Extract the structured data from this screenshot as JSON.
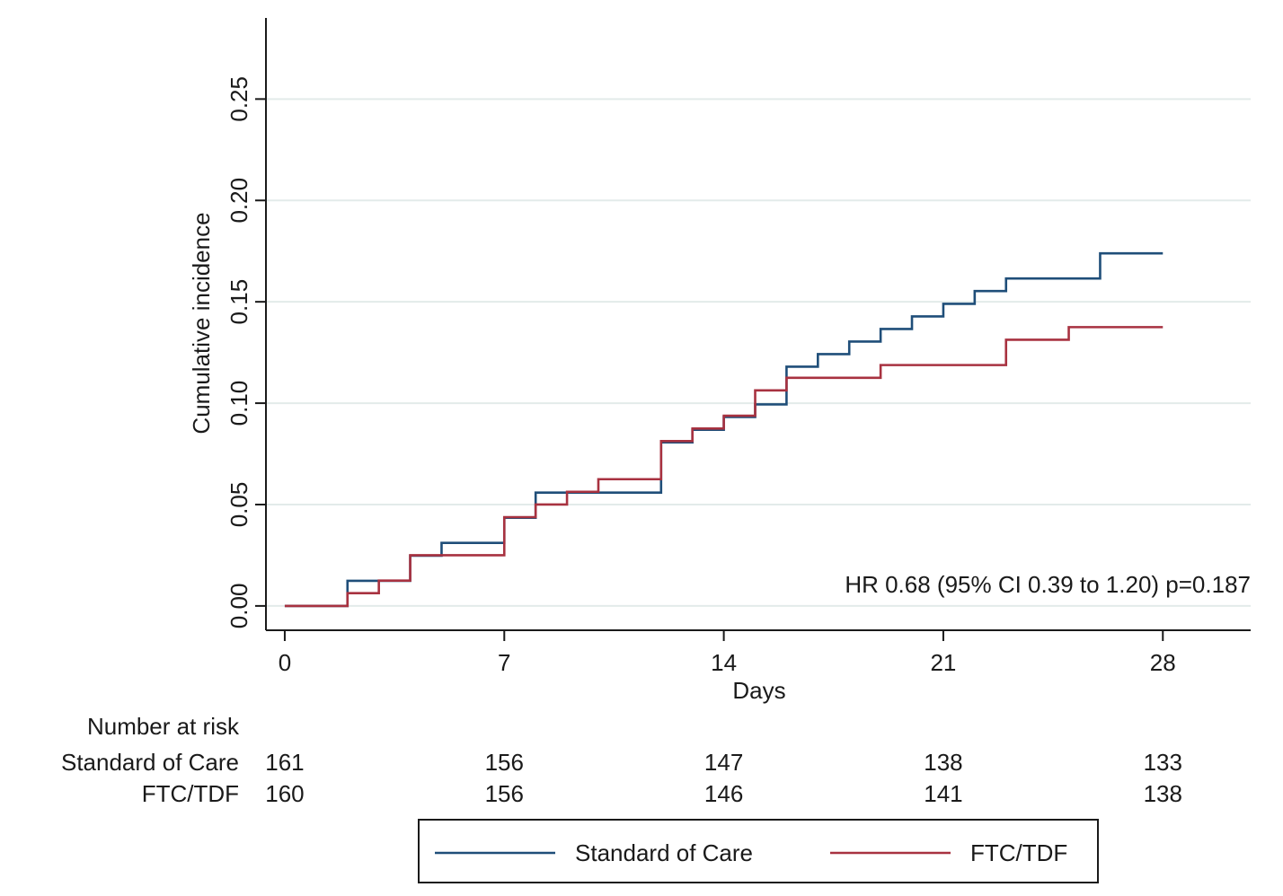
{
  "chart_data": {
    "type": "line",
    "step": true,
    "xlabel": "Days",
    "ylabel": "Cumulative incidence",
    "xlim": [
      -0.6,
      30.8
    ],
    "ylim": [
      -0.012,
      0.29
    ],
    "xticks": [
      0,
      7,
      14,
      21,
      28
    ],
    "xtick_labels": [
      "0",
      "7",
      "14",
      "21",
      "28"
    ],
    "yticks": [
      0,
      0.05,
      0.1,
      0.15,
      0.2,
      0.25
    ],
    "ytick_labels": [
      "0.00",
      "0.05",
      "0.10",
      "0.15",
      "0.20",
      "0.25"
    ],
    "grid": true,
    "annotation": "HR 0.68 (95% CI 0.39 to 1.20) p=0.187",
    "series": [
      {
        "name": "Standard of Care",
        "color": "#1f4e79",
        "points": [
          [
            0,
            0
          ],
          [
            2,
            0.0124
          ],
          [
            4,
            0.0248
          ],
          [
            5,
            0.0311
          ],
          [
            7,
            0.0435
          ],
          [
            8,
            0.0559
          ],
          [
            12,
            0.0807
          ],
          [
            13,
            0.0869
          ],
          [
            14,
            0.0932
          ],
          [
            15,
            0.0994
          ],
          [
            16,
            0.118
          ],
          [
            17,
            0.1242
          ],
          [
            18,
            0.1304
          ],
          [
            19,
            0.1366
          ],
          [
            20,
            0.1428
          ],
          [
            21,
            0.149
          ],
          [
            22,
            0.1553
          ],
          [
            23,
            0.1615
          ],
          [
            26,
            0.1739
          ],
          [
            28,
            0.1739
          ]
        ]
      },
      {
        "name": "FTC/TDF",
        "color": "#a83240",
        "points": [
          [
            0,
            0
          ],
          [
            2,
            0.0063
          ],
          [
            3,
            0.0125
          ],
          [
            4,
            0.025
          ],
          [
            7,
            0.0438
          ],
          [
            8,
            0.05
          ],
          [
            9,
            0.0563
          ],
          [
            10,
            0.0625
          ],
          [
            12,
            0.0813
          ],
          [
            13,
            0.0875
          ],
          [
            14,
            0.0938
          ],
          [
            15,
            0.1063
          ],
          [
            16,
            0.1125
          ],
          [
            19,
            0.1188
          ],
          [
            23,
            0.1313
          ],
          [
            25,
            0.1375
          ],
          [
            28,
            0.1375
          ]
        ]
      }
    ]
  },
  "risk_table": {
    "title": "Number at risk",
    "rows": [
      {
        "label": "Standard of Care",
        "values": [
          "161",
          "156",
          "147",
          "138",
          "133"
        ]
      },
      {
        "label": "FTC/TDF",
        "values": [
          "160",
          "156",
          "146",
          "141",
          "138"
        ]
      }
    ]
  },
  "legend": {
    "items": [
      {
        "label": "Standard of Care",
        "color": "#1f4e79"
      },
      {
        "label": "FTC/TDF",
        "color": "#a83240"
      }
    ]
  }
}
